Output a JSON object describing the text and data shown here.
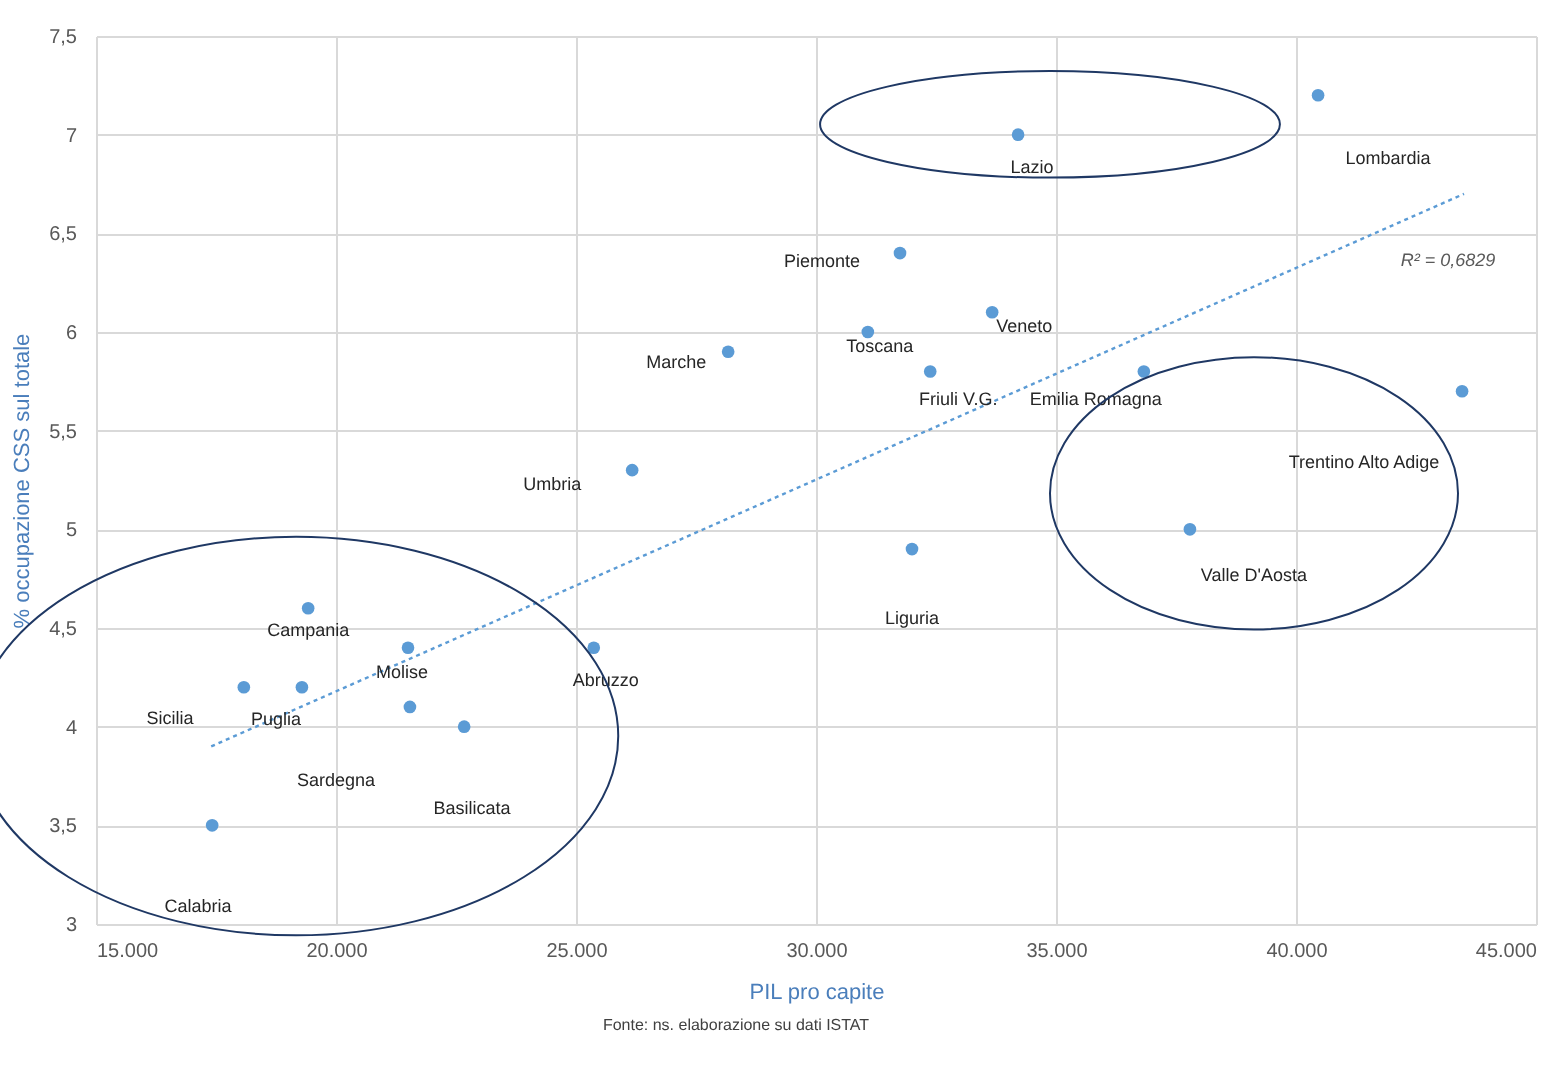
{
  "chart_data": {
    "type": "scatter",
    "xlabel": "PIL pro capite",
    "ylabel": "% occupazione CSS sul totale",
    "xlim": [
      15000,
      45000
    ],
    "xticks": [
      {
        "value": 15000,
        "label": "15.000"
      },
      {
        "value": 20000,
        "label": "20.000"
      },
      {
        "value": 25000,
        "label": "25.000"
      },
      {
        "value": 30000,
        "label": "30.000"
      },
      {
        "value": 35000,
        "label": "35.000"
      },
      {
        "value": 40000,
        "label": "40.000"
      },
      {
        "value": 45000,
        "label": "45.000"
      }
    ],
    "ylim": [
      3,
      7.5
    ],
    "yticks": [
      3,
      {
        "value": 3.5,
        "label": "3,5"
      },
      4,
      {
        "value": 4.5,
        "label": "4,5"
      },
      5,
      {
        "value": 5.5,
        "label": "5,5"
      },
      6,
      {
        "value": 6.5,
        "label": "6,5"
      },
      7,
      {
        "value": 7.5,
        "label": "7,5"
      }
    ],
    "grid": true,
    "series": [
      {
        "marker": "circle",
        "color": "#5b9bd5",
        "x": [
          40460,
          34210,
          31750,
          31080,
          33670,
          32380,
          36830,
          43460,
          37790,
          32000,
          28170,
          26170,
          19420,
          21500,
          25370,
          18080,
          19290,
          21540,
          22670,
          17420
        ],
        "values": [
          7.2,
          7.0,
          6.4,
          6.0,
          6.1,
          5.8,
          5.8,
          5.7,
          5.0,
          4.9,
          5.9,
          5.3,
          4.6,
          4.4,
          4.4,
          4.2,
          4.2,
          4.1,
          4.0,
          3.5
        ]
      },
      {
        "type": "line",
        "color": "#5b9bd5",
        "line_style": "dotted",
        "x": [
          17400,
          43500
        ],
        "values": [
          3.9,
          6.7
        ]
      }
    ],
    "annotations": [
      "Lombardia",
      {
        "text": "Lazio",
        "x": 34210,
        "y": 7.0
      },
      {
        "text": "Piemonte",
        "x": 31750,
        "y": 6.4
      },
      {
        "text": "Toscana",
        "x": 31080,
        "y": 6.0
      },
      {
        "text": "Veneto",
        "x": 33670,
        "y": 6.1
      },
      {
        "text": "Friuli V.G.",
        "x": 32380,
        "y": 5.8
      },
      {
        "text": "Emilia Romagna",
        "x": 36830,
        "y": 5.8
      },
      "Trentino Alto Adige",
      {
        "text": "Valle D'Aosta",
        "x": 37790,
        "y": 5.0
      },
      "Liguria",
      {
        "text": "Marche",
        "x": 28170,
        "y": 5.9
      },
      {
        "text": "Umbria",
        "x": 26170,
        "y": 5.3
      },
      {
        "text": "Campania",
        "x": 19420,
        "y": 4.6
      },
      {
        "text": "Molise",
        "x": 21500,
        "y": 4.4
      },
      {
        "text": "Abruzzo",
        "x": 25370,
        "y": 4.4
      },
      "Sicilia",
      {
        "text": "Puglia",
        "x": 19290,
        "y": 4.2
      },
      "Sardegna",
      "Basilicata",
      "Calabria",
      "R² = 0,6829",
      "Fonte: ns. elaborazione su dati ISTAT"
    ]
  }
}
